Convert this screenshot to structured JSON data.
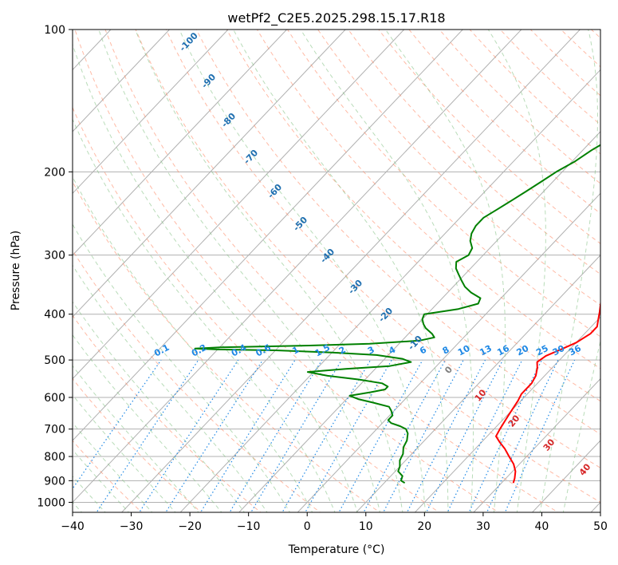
{
  "chart_data": {
    "type": "line",
    "title": "wetPf2_C2E5.2025.298.15.17.R18",
    "xlabel": "Temperature (°C)",
    "ylabel": "Pressure (hPa)",
    "xlim": [
      -40,
      50
    ],
    "ylim": [
      1050,
      100
    ],
    "y_scale": "log",
    "x_ticks": [
      -40,
      -30,
      -20,
      -10,
      0,
      10,
      20,
      30,
      40,
      50
    ],
    "x_tick_labels": [
      "−40",
      "−30",
      "−20",
      "−10",
      "0",
      "10",
      "20",
      "30",
      "40",
      "50"
    ],
    "y_ticks": [
      100,
      200,
      300,
      400,
      500,
      600,
      700,
      800,
      900,
      1000
    ],
    "y_tick_labels": [
      "100",
      "200",
      "300",
      "400",
      "500",
      "600",
      "700",
      "800",
      "900",
      "1000"
    ],
    "grid": true,
    "series": [
      {
        "color": "#ff0000",
        "points": [
          [
            32,
            910
          ],
          [
            31.5,
            890
          ],
          [
            30.5,
            860
          ],
          [
            29,
            830
          ],
          [
            27,
            800
          ],
          [
            25,
            770
          ],
          [
            23,
            745
          ],
          [
            21.5,
            725
          ],
          [
            21,
            700
          ],
          [
            20.5,
            670
          ],
          [
            20,
            640
          ],
          [
            19.5,
            610
          ],
          [
            19,
            590
          ],
          [
            19,
            560
          ],
          [
            18.5,
            540
          ],
          [
            17.5,
            520
          ],
          [
            16.5,
            505
          ],
          [
            17,
            490
          ],
          [
            18.5,
            475
          ],
          [
            20,
            460
          ],
          [
            21,
            440
          ],
          [
            21,
            425
          ],
          [
            20,
            410
          ],
          [
            19,
            395
          ],
          [
            17.5,
            375
          ],
          [
            16,
            357
          ],
          [
            14.5,
            340
          ],
          [
            13,
            320
          ],
          [
            12,
            300
          ],
          [
            11,
            280
          ],
          [
            10,
            260
          ],
          [
            8.5,
            240
          ],
          [
            7,
            225
          ],
          [
            5.5,
            210
          ],
          [
            4.2,
            195
          ],
          [
            3.3,
            182
          ],
          [
            2.5,
            170
          ],
          [
            1.5,
            160
          ],
          [
            0.8,
            150
          ],
          [
            -0.5,
            140
          ],
          [
            -1.3,
            132
          ],
          [
            -1,
            127
          ],
          [
            -0.5,
            121
          ],
          [
            0.5,
            114
          ],
          [
            1.5,
            108
          ],
          [
            3,
            103
          ],
          [
            3.8,
            100
          ]
        ]
      },
      {
        "color": "#008000",
        "points": [
          [
            13.5,
            910
          ],
          [
            12.5,
            900
          ],
          [
            12,
            880
          ],
          [
            10.5,
            860
          ],
          [
            10,
            840
          ],
          [
            9,
            815
          ],
          [
            8.5,
            790
          ],
          [
            7.5,
            765
          ],
          [
            7,
            740
          ],
          [
            6,
            715
          ],
          [
            5,
            700
          ],
          [
            3.5,
            690
          ],
          [
            1.5,
            680
          ],
          [
            0.5,
            670
          ],
          [
            0.5,
            655
          ],
          [
            -0.5,
            640
          ],
          [
            -1.5,
            628
          ],
          [
            -5,
            615
          ],
          [
            -8,
            605
          ],
          [
            -10,
            595
          ],
          [
            -7,
            585
          ],
          [
            -5,
            577
          ],
          [
            -5,
            569
          ],
          [
            -6.5,
            560
          ],
          [
            -11,
            550
          ],
          [
            -17,
            540
          ],
          [
            -21,
            530
          ],
          [
            -15,
            522
          ],
          [
            -8,
            515
          ],
          [
            -5,
            505
          ],
          [
            -7,
            497
          ],
          [
            -12,
            488
          ],
          [
            -20,
            482
          ],
          [
            -30,
            477
          ],
          [
            -40,
            475
          ],
          [
            -44,
            473
          ],
          [
            -40,
            470
          ],
          [
            -25,
            466
          ],
          [
            -15,
            462
          ],
          [
            -7,
            455
          ],
          [
            -5,
            448
          ],
          [
            -6,
            440
          ],
          [
            -8,
            428
          ],
          [
            -9,
            420
          ],
          [
            -10,
            410
          ],
          [
            -10.5,
            400
          ],
          [
            -5.5,
            390
          ],
          [
            -3,
            380
          ],
          [
            -3.5,
            370
          ],
          [
            -6,
            360
          ],
          [
            -8,
            350
          ],
          [
            -9.5,
            340
          ],
          [
            -11,
            330
          ],
          [
            -12.5,
            320
          ],
          [
            -13.5,
            310
          ],
          [
            -12.5,
            300
          ],
          [
            -13,
            290
          ],
          [
            -14.5,
            280
          ],
          [
            -15.5,
            270
          ],
          [
            -16,
            260
          ],
          [
            -16,
            250
          ],
          [
            -15,
            240
          ],
          [
            -14,
            230
          ],
          [
            -13,
            220
          ],
          [
            -12,
            210
          ],
          [
            -11,
            200
          ],
          [
            -9.5,
            190
          ],
          [
            -8.5,
            180
          ],
          [
            -7,
            170
          ],
          [
            -5.5,
            162
          ],
          [
            -4.5,
            155
          ],
          [
            -3.5,
            148
          ],
          [
            -3,
            140
          ],
          [
            -1.5,
            133
          ],
          [
            -1.5,
            126
          ],
          [
            -1.5,
            120
          ],
          [
            -1.5,
            115
          ],
          [
            -1,
            110
          ],
          [
            -0.5,
            105
          ],
          [
            -0.5,
            100
          ]
        ]
      }
    ],
    "isotherm_labels": [
      "-100",
      "-90",
      "-80",
      "-70",
      "-60",
      "-50",
      "-40",
      "-30",
      "-20",
      "-10"
    ],
    "mixing_ratio_labels": [
      "0.1",
      "0.2",
      "0.4",
      "0.6",
      "1",
      "1.5",
      "2",
      "3",
      "4",
      "6",
      "8",
      "10",
      "13",
      "16",
      "20",
      "25",
      "30",
      "36"
    ],
    "moist_adiabat_labels": [
      "0",
      "10",
      "20",
      "30",
      "40"
    ],
    "colors": {
      "temperature": "#ff0000",
      "dewpoint": "#008000",
      "isotherm_label": "#1f6fb0",
      "mixing_ratio": "#1e88e5",
      "moist_adiabat_label": "#d62728",
      "zero_label": "#808080",
      "dry_adiabat": "#ff8c69",
      "moist_adiabat": "#7fbf7f"
    }
  }
}
